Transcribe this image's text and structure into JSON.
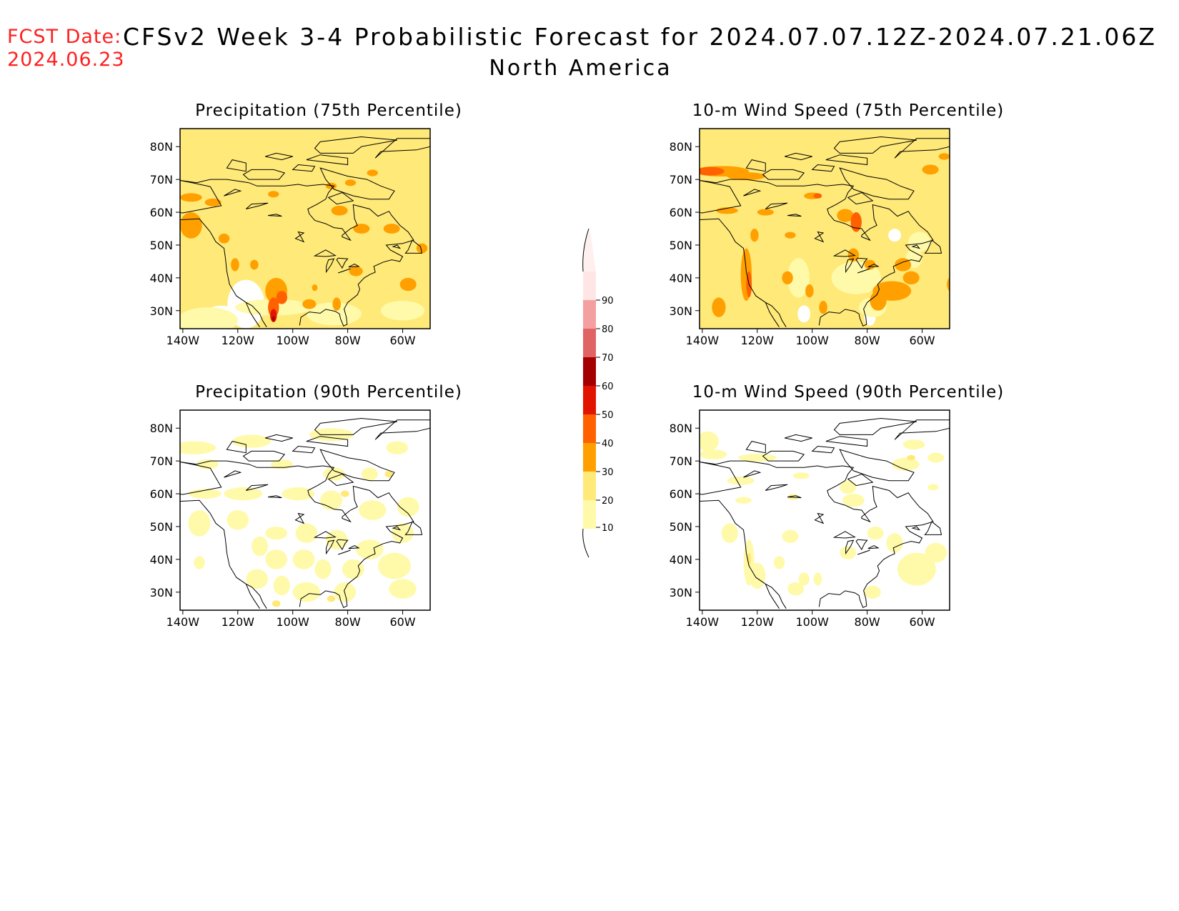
{
  "header": {
    "fcst_label": "FCST Date:",
    "fcst_date": "2024.06.23",
    "title": "CFSv2 Week 3-4 Probabilistic Forecast for 2024.07.07.12Z-2024.07.21.06Z",
    "subtitle": "North America"
  },
  "axes": {
    "lat_ticks": [
      "80N",
      "70N",
      "60N",
      "50N",
      "40N",
      "30N"
    ],
    "lon_ticks": [
      "140W",
      "120W",
      "100W",
      "80W",
      "60W"
    ]
  },
  "panels": [
    {
      "id": "precip-75",
      "title": "Precipitation (75th Percentile)",
      "variable": "precipitation",
      "percentile": 75,
      "dominant_category": "20-30",
      "hotspot_max_category": "60-70"
    },
    {
      "id": "wind-75",
      "title": "10-m Wind Speed (75th Percentile)",
      "variable": "wind",
      "percentile": 75,
      "dominant_category": "20-30",
      "hotspot_max_category": "40-50"
    },
    {
      "id": "precip-90",
      "title": "Precipitation (90th Percentile)",
      "variable": "precipitation",
      "percentile": 90,
      "dominant_category": "10-20",
      "hotspot_max_category": "30-40"
    },
    {
      "id": "wind-90",
      "title": "10-m Wind Speed (90th Percentile)",
      "variable": "wind",
      "percentile": 90,
      "dominant_category": "10-20",
      "hotspot_max_category": "20-30"
    }
  ],
  "colorbar": {
    "levels": [
      "10",
      "20",
      "30",
      "40",
      "50",
      "60",
      "70",
      "80",
      "90"
    ],
    "colors": [
      "#fffaaa",
      "#ffe978",
      "#ffa000",
      "#ff6000",
      "#e11400",
      "#a50000",
      "#e16464",
      "#f5a0a0",
      "#ffe6e6"
    ]
  },
  "colors": {
    "fcst_text": "#ff2020",
    "coastline": "#000000",
    "background": "#ffffff"
  }
}
